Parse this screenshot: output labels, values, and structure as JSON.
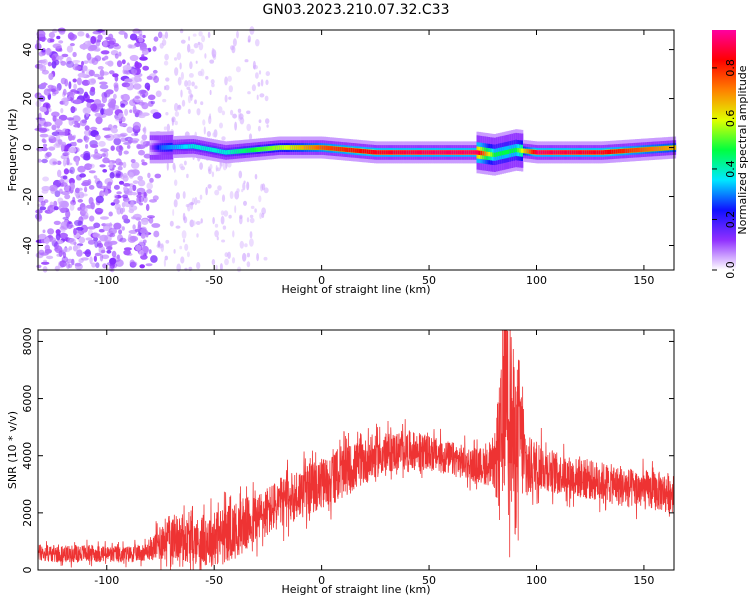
{
  "title": "GN03.2023.210.07.32.C33",
  "chart_data": [
    {
      "type": "heatmap",
      "xlabel": "Height of straight line (km)",
      "ylabel": "Frequency (Hz)",
      "xlim": [
        -132,
        164
      ],
      "ylim": [
        -50,
        48
      ],
      "x_ticks": [
        -100,
        -50,
        0,
        50,
        100,
        150
      ],
      "x_tick_labels": [
        "-100",
        "-50",
        "0",
        "50",
        "100",
        "150"
      ],
      "y_ticks": [
        -40,
        -20,
        0,
        20,
        40
      ],
      "y_tick_labels": [
        "-40",
        "-20",
        "0",
        "20",
        "40"
      ],
      "colorbar": {
        "label": "Normalized spectral amplitude",
        "range": [
          0,
          0.95
        ],
        "ticks": [
          0.0,
          0.2,
          0.4,
          0.6,
          0.8
        ],
        "tick_labels": [
          "0.0",
          "0.2",
          "0.4",
          "0.6",
          "0.8"
        ],
        "colormap": [
          "#ffffff",
          "#9030ff",
          "#1010ff",
          "#00e8ff",
          "#00ff40",
          "#e0ff00",
          "#ff8000",
          "#ff0000",
          "#ff00a0"
        ]
      },
      "ridge": [
        {
          "x": -80,
          "y": 0.0,
          "amplitude": 0.1
        },
        {
          "x": -75,
          "y": 0.0,
          "amplitude": 0.3
        },
        {
          "x": -60,
          "y": 0.5,
          "amplitude": 0.4
        },
        {
          "x": -45,
          "y": -2.0,
          "amplitude": 0.4
        },
        {
          "x": -20,
          "y": 0.0,
          "amplitude": 0.6
        },
        {
          "x": 0,
          "y": 0.0,
          "amplitude": 0.8
        },
        {
          "x": 25,
          "y": -2.0,
          "amplitude": 0.9
        },
        {
          "x": 50,
          "y": -2.0,
          "amplitude": 0.95
        },
        {
          "x": 72,
          "y": -2.0,
          "amplitude": 0.95
        },
        {
          "x": 80,
          "y": -3.0,
          "amplitude": 0.5
        },
        {
          "x": 90,
          "y": -1.0,
          "amplitude": 0.5
        },
        {
          "x": 100,
          "y": -2.0,
          "amplitude": 0.95
        },
        {
          "x": 130,
          "y": -2.0,
          "amplitude": 0.9
        },
        {
          "x": 164,
          "y": 0.0,
          "amplitude": 0.7
        }
      ]
    },
    {
      "type": "line",
      "xlabel": "Height of straight line (km)",
      "ylabel": "SNR (10 * v/v)",
      "xlim": [
        -132,
        164
      ],
      "ylim": [
        0,
        8400
      ],
      "x_ticks": [
        -100,
        -50,
        0,
        50,
        100,
        150
      ],
      "x_tick_labels": [
        "-100",
        "-50",
        "0",
        "50",
        "100",
        "150"
      ],
      "y_ticks": [
        0,
        2000,
        4000,
        6000,
        8000
      ],
      "y_tick_labels": [
        "0",
        "2000",
        "4000",
        "6000",
        "8000"
      ],
      "series": [
        {
          "color": "#ee3333",
          "x": [
            -132,
            -120,
            -110,
            -100,
            -90,
            -80,
            -75,
            -70,
            -60,
            -50,
            -40,
            -30,
            -20,
            -10,
            0,
            10,
            20,
            30,
            40,
            50,
            60,
            70,
            80,
            84,
            86,
            88,
            90,
            92,
            95,
            100,
            110,
            120,
            130,
            140,
            150,
            164
          ],
          "y": [
            600,
            550,
            600,
            550,
            550,
            650,
            1000,
            1200,
            1000,
            1100,
            1400,
            1800,
            2300,
            2700,
            3000,
            3400,
            3800,
            4100,
            4200,
            4100,
            3900,
            3700,
            3600,
            4500,
            7500,
            5500,
            4000,
            5000,
            3500,
            3700,
            3400,
            3200,
            3100,
            2900,
            2800,
            2700
          ],
          "spread": [
            300,
            300,
            300,
            300,
            300,
            300,
            700,
            800,
            800,
            1000,
            1000,
            900,
            900,
            900,
            900,
            900,
            800,
            700,
            700,
            600,
            600,
            600,
            700,
            3000,
            3500,
            3500,
            3000,
            2500,
            1200,
            900,
            700,
            700,
            700,
            700,
            700,
            700
          ]
        }
      ]
    }
  ]
}
